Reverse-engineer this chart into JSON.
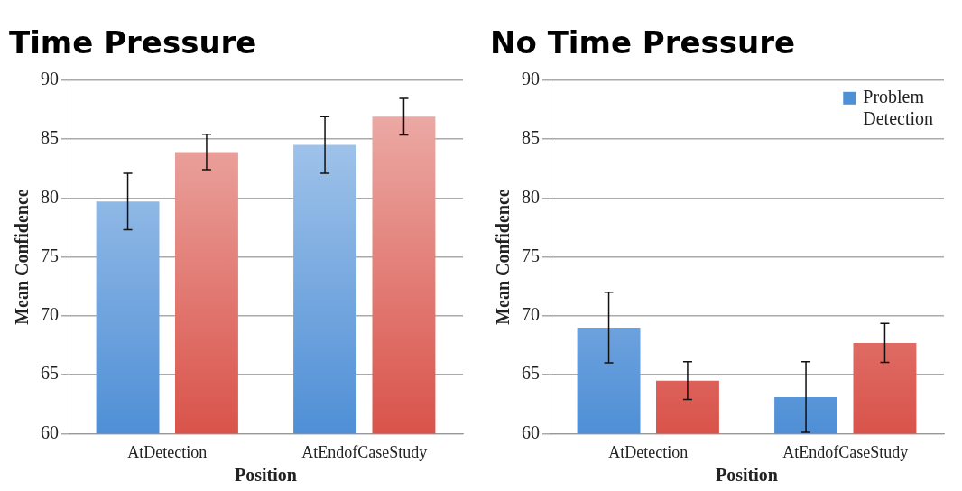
{
  "chart_data": [
    {
      "type": "bar",
      "title": "Time Pressure",
      "xlabel": "Position",
      "ylabel": "Mean Confidence",
      "categories": [
        "AtDetection",
        "AtEndofCaseStudy"
      ],
      "series": [
        {
          "color": "#4f8fd6",
          "values": [
            79.7,
            84.5
          ],
          "errors": [
            2.4,
            2.4
          ]
        },
        {
          "color": "#d9534a",
          "values": [
            83.9,
            86.9
          ],
          "errors": [
            1.5,
            1.55
          ]
        }
      ],
      "ylim": [
        60,
        90
      ],
      "yticks": [
        60,
        65,
        70,
        75,
        80,
        85,
        90
      ],
      "grid": "y",
      "legend": false
    },
    {
      "type": "bar",
      "title": "No Time Pressure",
      "xlabel": "Position",
      "ylabel": "Mean Confidence",
      "categories": [
        "AtDetection",
        "AtEndofCaseStudy"
      ],
      "series": [
        {
          "name": "Problem Detection",
          "color": "#4f8fd6",
          "values": [
            69.0,
            63.1
          ],
          "errors": [
            3,
            3
          ]
        },
        {
          "color": "#d9534a",
          "values": [
            64.5,
            67.7
          ],
          "errors": [
            1.6,
            1.65
          ]
        }
      ],
      "ylim": [
        60,
        90
      ],
      "yticks": [
        60,
        65,
        70,
        75,
        80,
        85,
        90
      ],
      "grid": "y",
      "legend": "top right"
    }
  ]
}
